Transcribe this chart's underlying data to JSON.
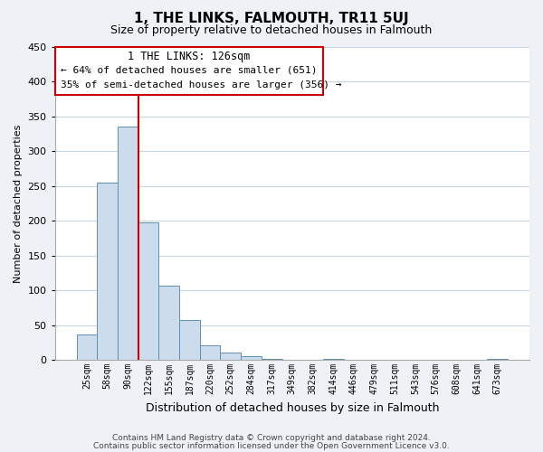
{
  "title": "1, THE LINKS, FALMOUTH, TR11 5UJ",
  "subtitle": "Size of property relative to detached houses in Falmouth",
  "xlabel": "Distribution of detached houses by size in Falmouth",
  "ylabel": "Number of detached properties",
  "bar_color": "#ccdcec",
  "bar_edge_color": "#6090b0",
  "categories": [
    "25sqm",
    "58sqm",
    "90sqm",
    "122sqm",
    "155sqm",
    "187sqm",
    "220sqm",
    "252sqm",
    "284sqm",
    "317sqm",
    "349sqm",
    "382sqm",
    "414sqm",
    "446sqm",
    "479sqm",
    "511sqm",
    "543sqm",
    "576sqm",
    "608sqm",
    "641sqm",
    "673sqm"
  ],
  "values": [
    36,
    255,
    335,
    197,
    106,
    57,
    21,
    11,
    5,
    1,
    0,
    0,
    2,
    0,
    0,
    0,
    0,
    0,
    0,
    0,
    2
  ],
  "ylim": [
    0,
    450
  ],
  "yticks": [
    0,
    50,
    100,
    150,
    200,
    250,
    300,
    350,
    400,
    450
  ],
  "annotation_title": "1 THE LINKS: 126sqm",
  "annotation_line1": "← 64% of detached houses are smaller (651)",
  "annotation_line2": "35% of semi-detached houses are larger (356) →",
  "marker_bar_index": 3,
  "footer_line1": "Contains HM Land Registry data © Crown copyright and database right 2024.",
  "footer_line2": "Contains public sector information licensed under the Open Government Licence v3.0.",
  "background_color": "#eef2f6",
  "plot_background_color": "#ffffff",
  "grid_color": "#c8d4e0",
  "annotation_box_color": "#ffffff",
  "annotation_box_edge": "#cc0000",
  "red_line_color": "#cc0000",
  "title_fontsize": 11,
  "subtitle_fontsize": 9,
  "ylabel_fontsize": 8,
  "xlabel_fontsize": 9,
  "ytick_fontsize": 8,
  "xtick_fontsize": 7,
  "footer_fontsize": 6.5,
  "annot_title_fontsize": 8.5,
  "annot_text_fontsize": 8
}
